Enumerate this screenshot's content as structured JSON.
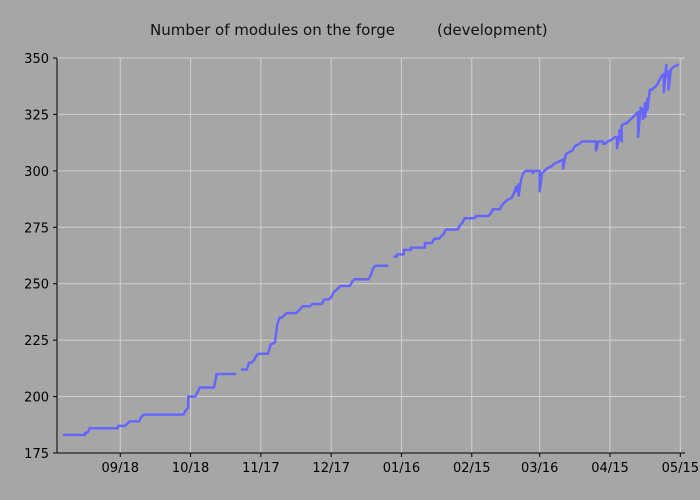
{
  "chart_data": {
    "type": "line",
    "title": "Number of modules on the forge",
    "subtitle": "(development)",
    "xlabel": "",
    "ylabel": "",
    "ylim": [
      175,
      350
    ],
    "yticks": [
      175,
      200,
      225,
      250,
      275,
      300,
      325,
      350
    ],
    "xlim": [
      "2012-08-22",
      "2013-05-17"
    ],
    "xticks": [
      {
        "date": "2012-09-18",
        "label": "09/18"
      },
      {
        "date": "2012-10-18",
        "label": "10/18"
      },
      {
        "date": "2012-11-17",
        "label": "11/17"
      },
      {
        "date": "2012-12-17",
        "label": "12/17"
      },
      {
        "date": "2013-01-16",
        "label": "01/16"
      },
      {
        "date": "2013-02-15",
        "label": "02/15"
      },
      {
        "date": "2013-03-16",
        "label": "03/16"
      },
      {
        "date": "2013-04-15",
        "label": "04/15"
      },
      {
        "date": "2013-05-15",
        "label": "05/15"
      }
    ],
    "grid": true,
    "colors": {
      "line": "#6666ff",
      "background": "#a6a6a6",
      "grid": "#d0d0d0"
    },
    "series": [
      {
        "points": [
          [
            "2012-08-25",
            183
          ],
          [
            "2012-09-03",
            183
          ],
          [
            "2012-09-03",
            184
          ],
          [
            "2012-09-04",
            184
          ],
          [
            "2012-09-05",
            186
          ],
          [
            "2012-09-17",
            186
          ],
          [
            "2012-09-17",
            187
          ],
          [
            "2012-09-20",
            187
          ],
          [
            "2012-09-21",
            188
          ],
          [
            "2012-09-22",
            189
          ],
          [
            "2012-09-26",
            189
          ],
          [
            "2012-09-27",
            191
          ],
          [
            "2012-09-28",
            192
          ],
          [
            "2012-10-15",
            192
          ],
          [
            "2012-10-16",
            194
          ],
          [
            "2012-10-17",
            195
          ],
          [
            "2012-10-17",
            200
          ],
          [
            "2012-10-20",
            200
          ],
          [
            "2012-10-21",
            202
          ],
          [
            "2012-10-22",
            204
          ],
          [
            "2012-10-28",
            204
          ],
          [
            "2012-10-29",
            209
          ],
          [
            "2012-10-29",
            210
          ],
          [
            "2012-11-06",
            210
          ],
          null,
          [
            "2012-11-09",
            212
          ],
          [
            "2012-11-11",
            212
          ],
          [
            "2012-11-12",
            215
          ],
          [
            "2012-11-13",
            215
          ],
          [
            "2012-11-14",
            216
          ],
          [
            "2012-11-15",
            218
          ],
          [
            "2012-11-16",
            219
          ],
          [
            "2012-11-20",
            219
          ],
          [
            "2012-11-21",
            222
          ],
          [
            "2012-11-21",
            223
          ],
          [
            "2012-11-23",
            224
          ],
          [
            "2012-11-24",
            232
          ],
          [
            "2012-11-25",
            235
          ],
          [
            "2012-11-26",
            235
          ],
          [
            "2012-11-27",
            236
          ],
          [
            "2012-11-28",
            237
          ],
          [
            "2012-12-02",
            237
          ],
          [
            "2012-12-03",
            238
          ],
          [
            "2012-12-04",
            239
          ],
          [
            "2012-12-05",
            240
          ],
          [
            "2012-12-08",
            240
          ],
          [
            "2012-12-09",
            241
          ],
          [
            "2012-12-13",
            241
          ],
          [
            "2012-12-14",
            243
          ],
          [
            "2012-12-16",
            243
          ],
          [
            "2012-12-17",
            244
          ],
          [
            "2012-12-18",
            246
          ],
          [
            "2012-12-20",
            248
          ],
          [
            "2012-12-21",
            249
          ],
          [
            "2012-12-25",
            249
          ],
          [
            "2012-12-26",
            251
          ],
          [
            "2012-12-27",
            252
          ],
          [
            "2013-01-02",
            252
          ],
          [
            "2013-01-03",
            254
          ],
          [
            "2013-01-04",
            257
          ],
          [
            "2013-01-05",
            258
          ],
          [
            "2013-01-10",
            258
          ],
          null,
          [
            "2013-01-13",
            262
          ],
          [
            "2013-01-14",
            262
          ],
          [
            "2013-01-14",
            263
          ],
          [
            "2013-01-17",
            263
          ],
          [
            "2013-01-17",
            265
          ],
          [
            "2013-01-20",
            265
          ],
          [
            "2013-01-20",
            266
          ],
          [
            "2013-01-26",
            266
          ],
          [
            "2013-01-26",
            268
          ],
          [
            "2013-01-29",
            268
          ],
          [
            "2013-01-30",
            270
          ],
          [
            "2013-02-01",
            270
          ],
          [
            "2013-02-02",
            271
          ],
          [
            "2013-02-03",
            272
          ],
          [
            "2013-02-04",
            274
          ],
          [
            "2013-02-09",
            274
          ],
          [
            "2013-02-10",
            276
          ],
          [
            "2013-02-11",
            277
          ],
          [
            "2013-02-12",
            279
          ],
          [
            "2013-02-16",
            279
          ],
          [
            "2013-02-17",
            280
          ],
          [
            "2013-02-22",
            280
          ],
          [
            "2013-02-23",
            281
          ],
          [
            "2013-02-24",
            283
          ],
          [
            "2013-02-27",
            283
          ],
          [
            "2013-02-28",
            285
          ],
          [
            "2013-03-02",
            287
          ],
          [
            "2013-03-04",
            288
          ],
          [
            "2013-03-05",
            290
          ],
          [
            "2013-03-06",
            293
          ],
          [
            "2013-03-06",
            291
          ],
          [
            "2013-03-07",
            294
          ],
          [
            "2013-03-07",
            289
          ],
          [
            "2013-03-08",
            296
          ],
          [
            "2013-03-09",
            299
          ],
          [
            "2013-03-10",
            300
          ],
          [
            "2013-03-13",
            300
          ],
          [
            "2013-03-13",
            299
          ],
          [
            "2013-03-14",
            300
          ],
          [
            "2013-03-16",
            300
          ],
          [
            "2013-03-16",
            291
          ],
          [
            "2013-03-17",
            299
          ],
          [
            "2013-03-18",
            300
          ],
          [
            "2013-03-19",
            301
          ],
          [
            "2013-03-21",
            302
          ],
          [
            "2013-03-22",
            303
          ],
          [
            "2013-03-24",
            304
          ],
          [
            "2013-03-26",
            305
          ],
          [
            "2013-03-26",
            301
          ],
          [
            "2013-03-27",
            307
          ],
          [
            "2013-03-28",
            308
          ],
          [
            "2013-03-30",
            309
          ],
          [
            "2013-03-31",
            311
          ],
          [
            "2013-04-02",
            312
          ],
          [
            "2013-04-03",
            313
          ],
          [
            "2013-04-09",
            313
          ],
          [
            "2013-04-09",
            309
          ],
          [
            "2013-04-10",
            313
          ],
          [
            "2013-04-12",
            313
          ],
          [
            "2013-04-12",
            312
          ],
          [
            "2013-04-13",
            312
          ],
          [
            "2013-04-14",
            313
          ],
          [
            "2013-04-16",
            314
          ],
          [
            "2013-04-17",
            315
          ],
          [
            "2013-04-18",
            315
          ],
          [
            "2013-04-18",
            310
          ],
          [
            "2013-04-19",
            316
          ],
          [
            "2013-04-19",
            318
          ],
          [
            "2013-04-20",
            313
          ],
          [
            "2013-04-20",
            320
          ],
          [
            "2013-04-21",
            321
          ],
          [
            "2013-04-22",
            321
          ],
          [
            "2013-04-23",
            322
          ],
          [
            "2013-04-24",
            323
          ],
          [
            "2013-04-25",
            324
          ],
          [
            "2013-04-26",
            325
          ],
          [
            "2013-04-27",
            326
          ],
          [
            "2013-04-27",
            315
          ],
          [
            "2013-04-28",
            328
          ],
          [
            "2013-04-29",
            327
          ],
          [
            "2013-04-29",
            323
          ],
          [
            "2013-04-30",
            330
          ],
          [
            "2013-04-30",
            324
          ],
          [
            "2013-05-01",
            332
          ],
          [
            "2013-05-01",
            327
          ],
          [
            "2013-05-02",
            336
          ],
          [
            "2013-05-03",
            336
          ],
          [
            "2013-05-04",
            337
          ],
          [
            "2013-05-05",
            338
          ],
          [
            "2013-05-06",
            340
          ],
          [
            "2013-05-07",
            342
          ],
          [
            "2013-05-08",
            343
          ],
          [
            "2013-05-08",
            335
          ],
          [
            "2013-05-09",
            347
          ],
          [
            "2013-05-09",
            342
          ],
          [
            "2013-05-10",
            344
          ],
          [
            "2013-05-10",
            336
          ],
          [
            "2013-05-11",
            345
          ],
          [
            "2013-05-12",
            346
          ],
          [
            "2013-05-14",
            347
          ]
        ]
      }
    ]
  }
}
